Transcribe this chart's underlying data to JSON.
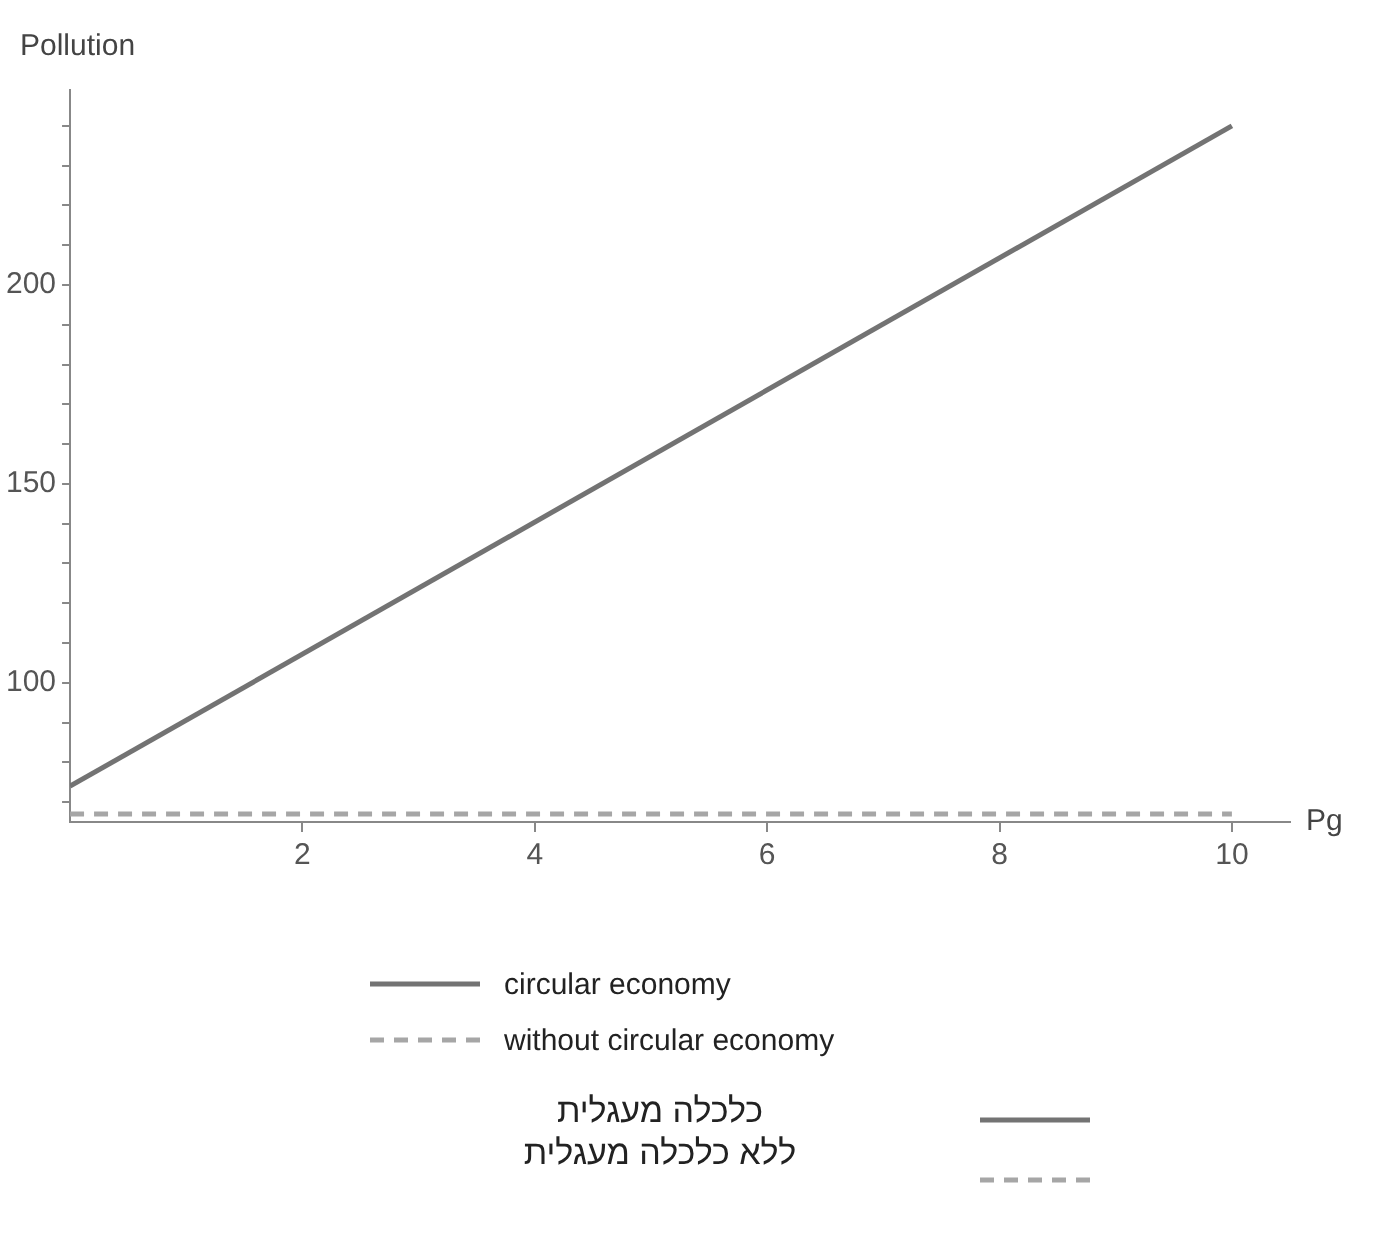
{
  "chart_data": {
    "type": "line",
    "xlabel": "Pg",
    "ylabel": "Pollution",
    "xlim": [
      0,
      10.5
    ],
    "ylim": [
      65,
      249
    ],
    "xticks": [
      2,
      4,
      6,
      8,
      10
    ],
    "yticks": [
      {
        "value": 70,
        "label": null
      },
      {
        "value": 80,
        "label": null
      },
      {
        "value": 90,
        "label": null
      },
      100,
      {
        "value": 110,
        "label": null
      },
      {
        "value": 120,
        "label": null
      },
      {
        "value": 130,
        "label": null
      },
      {
        "value": 140,
        "label": null
      },
      150,
      {
        "value": 160,
        "label": null
      },
      {
        "value": 170,
        "label": null
      },
      {
        "value": 180,
        "label": null
      },
      {
        "value": 190,
        "label": null
      },
      200,
      {
        "value": 210,
        "label": null
      },
      {
        "value": 220,
        "label": null
      },
      {
        "value": 230,
        "label": null
      },
      {
        "value": 240,
        "label": null
      }
    ],
    "grid": false,
    "legend": "bottom",
    "marker": "none",
    "x": [
      0,
      10
    ],
    "series": [
      {
        "name": "circular economy",
        "color": "#737373",
        "values": [
          74,
          240
        ],
        "line_style": "solid"
      },
      {
        "name": "without circular economy",
        "color": "#a6a6a6",
        "values": [
          67,
          67
        ],
        "line_style": "dashed"
      }
    ],
    "annotations": [
      "כלכלה מעגלית",
      "ללא כלכלה מעגלית"
    ]
  }
}
